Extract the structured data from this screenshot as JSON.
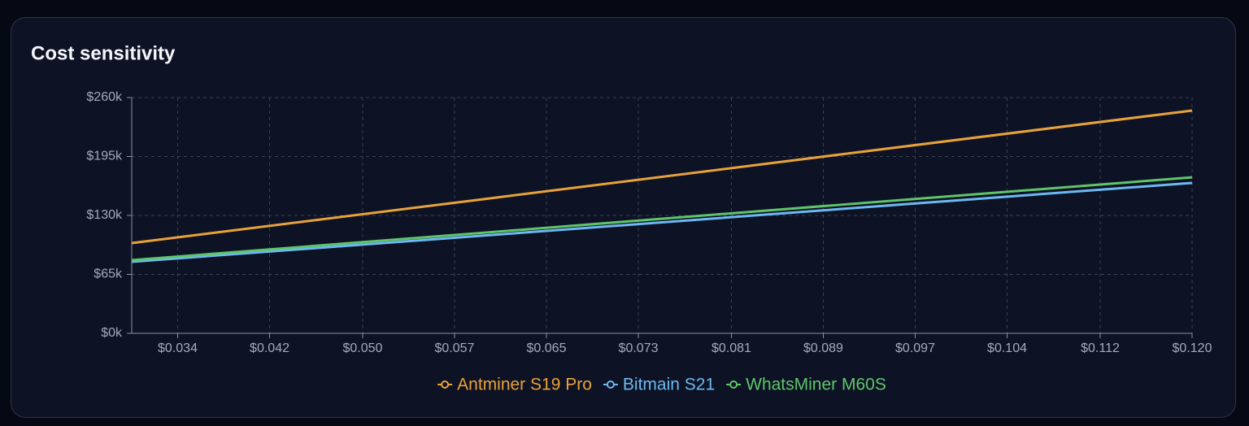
{
  "chart_data": {
    "type": "line",
    "title": "Cost sensitivity",
    "x": [
      0.03,
      0.06,
      0.09,
      0.12
    ],
    "xlim": [
      0.03,
      0.12
    ],
    "xticks": [
      {
        "value": 0.0339,
        "label": "$0.034"
      },
      {
        "value": 0.0417,
        "label": "$0.042"
      },
      {
        "value": 0.0496,
        "label": "$0.050"
      },
      {
        "value": 0.0574,
        "label": "$0.057"
      },
      {
        "value": 0.0652,
        "label": "$0.065"
      },
      {
        "value": 0.073,
        "label": "$0.073"
      },
      {
        "value": 0.0809,
        "label": "$0.081"
      },
      {
        "value": 0.0887,
        "label": "$0.089"
      },
      {
        "value": 0.0965,
        "label": "$0.097"
      },
      {
        "value": 0.1043,
        "label": "$0.104"
      },
      {
        "value": 0.1122,
        "label": "$0.112"
      },
      {
        "value": 0.12,
        "label": "$0.120"
      }
    ],
    "ylim": [
      0,
      260000
    ],
    "yticks": [
      {
        "value": 0,
        "label": "$0k"
      },
      {
        "value": 65000,
        "label": "$65k"
      },
      {
        "value": 130000,
        "label": "$130k"
      },
      {
        "value": 195000,
        "label": "$195k"
      },
      {
        "value": 260000,
        "label": "$260k"
      }
    ],
    "grid": true,
    "legend": "bottom",
    "series": [
      {
        "name": "Antminer S19 Pro",
        "color": "#e9a23b",
        "values": [
          99500,
          148200,
          197000,
          245700
        ]
      },
      {
        "name": "Bitmain S21",
        "color": "#6db8f2",
        "values": [
          78900,
          107900,
          136900,
          165900
        ]
      },
      {
        "name": "WhatsMiner M60S",
        "color": "#5fc56b",
        "values": [
          80700,
          111100,
          141600,
          172000
        ]
      }
    ]
  }
}
